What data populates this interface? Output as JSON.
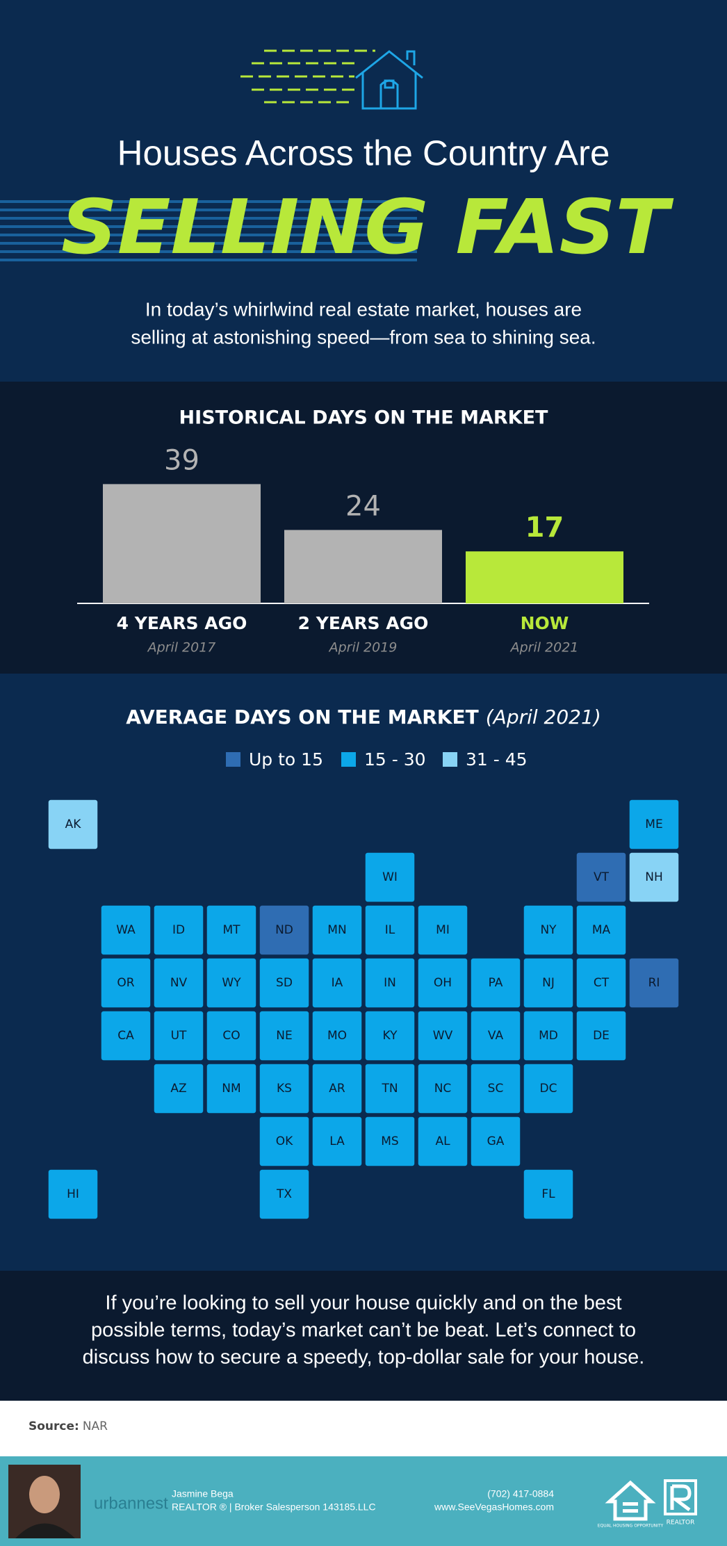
{
  "header": {
    "title": "Houses Across the Country Are",
    "headline": "SELLING FAST",
    "intro": [
      "In today’s whirlwind real estate market, houses are",
      "selling at astonishing speed—from sea to shining sea."
    ]
  },
  "chart_data": {
    "type": "bar",
    "title": "HISTORICAL DAYS ON THE MARKET",
    "categories": [
      "4 YEARS AGO",
      "2 YEARS AGO",
      "NOW"
    ],
    "sublabels": [
      "April 2017",
      "April 2019",
      "April 2021"
    ],
    "values": [
      39,
      24,
      17
    ],
    "colors": [
      "#b3b3b3",
      "#b3b3b3",
      "#b8e83a"
    ],
    "label_colors": [
      "#ffffff",
      "#ffffff",
      "#b8e83a"
    ]
  },
  "map": {
    "title": "AVERAGE DAYS ON THE MARKET",
    "title_note": "(April 2021)",
    "legend": [
      {
        "label": "Up to 15",
        "color": "#2f6db3",
        "states": [
          "ND",
          "VT",
          "RI"
        ]
      },
      {
        "label": "15 - 30",
        "color": "#0ca7e9",
        "states": [
          "WA",
          "OR",
          "CA",
          "ID",
          "NV",
          "MT",
          "WY",
          "UT",
          "AZ",
          "CO",
          "NM",
          "SD",
          "NE",
          "KS",
          "OK",
          "TX",
          "MN",
          "IA",
          "MO",
          "AR",
          "LA",
          "WI",
          "IL",
          "MI",
          "IN",
          "OH",
          "KY",
          "TN",
          "MS",
          "AL",
          "GA",
          "FL",
          "SC",
          "NC",
          "VA",
          "WV",
          "PA",
          "NY",
          "NJ",
          "DE",
          "MD",
          "DC",
          "CT",
          "MA",
          "ME",
          "HI"
        ]
      },
      {
        "label": "31 - 45",
        "color": "#88d3f5",
        "states": [
          "AK",
          "NH"
        ]
      }
    ]
  },
  "closing": [
    "If you’re looking to sell your house quickly and on the best",
    "possible terms, today’s market can’t be beat. Let’s connect to",
    "discuss how to secure a speedy, top-dollar sale for your house."
  ],
  "source": {
    "label": "Source:",
    "value": "NAR"
  },
  "footer": {
    "brand": "urbannest",
    "name": "Jasmine Bega",
    "role": "REALTOR ® | Broker Salesperson 143185.LLC",
    "phone": "(702) 417-0884",
    "website": "www.SeeVegasHomes.com",
    "eho": "EQUAL HOUSING OPPORTUNITY",
    "realtor": "REALTOR"
  }
}
